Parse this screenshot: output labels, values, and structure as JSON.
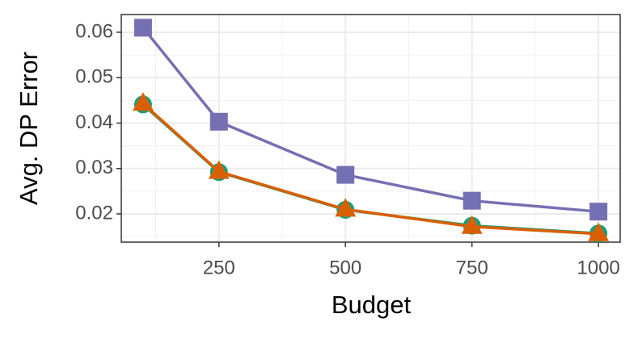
{
  "chart_data": {
    "type": "line",
    "x_label": "Budget",
    "y_label": "Avg. DP Error",
    "x": [
      100,
      250,
      500,
      750,
      1000
    ],
    "series": [
      {
        "color": "#7570b3",
        "marker": "square",
        "values": [
          0.061,
          0.0403,
          0.0286,
          0.0229,
          0.0205
        ]
      },
      {
        "color": "#1b9e77",
        "marker": "circle",
        "values": [
          0.0441,
          0.0292,
          0.0209,
          0.0174,
          0.0157
        ]
      },
      {
        "color": "#d95f02",
        "marker": "triangle",
        "values": [
          0.0443,
          0.0293,
          0.021,
          0.0172,
          0.0156
        ]
      }
    ],
    "xlim": [
      57,
      1043
    ],
    "ylim": [
      0.01378,
      0.0639
    ],
    "xticks": [
      250,
      500,
      750,
      1000
    ],
    "yticks": [
      0.02,
      0.03,
      0.04,
      0.05,
      0.06
    ],
    "x_minor_grid": [
      125,
      375,
      625,
      875
    ],
    "y_minor_grid": [
      0.015,
      0.025,
      0.035,
      0.045,
      0.055
    ],
    "grid": true
  }
}
